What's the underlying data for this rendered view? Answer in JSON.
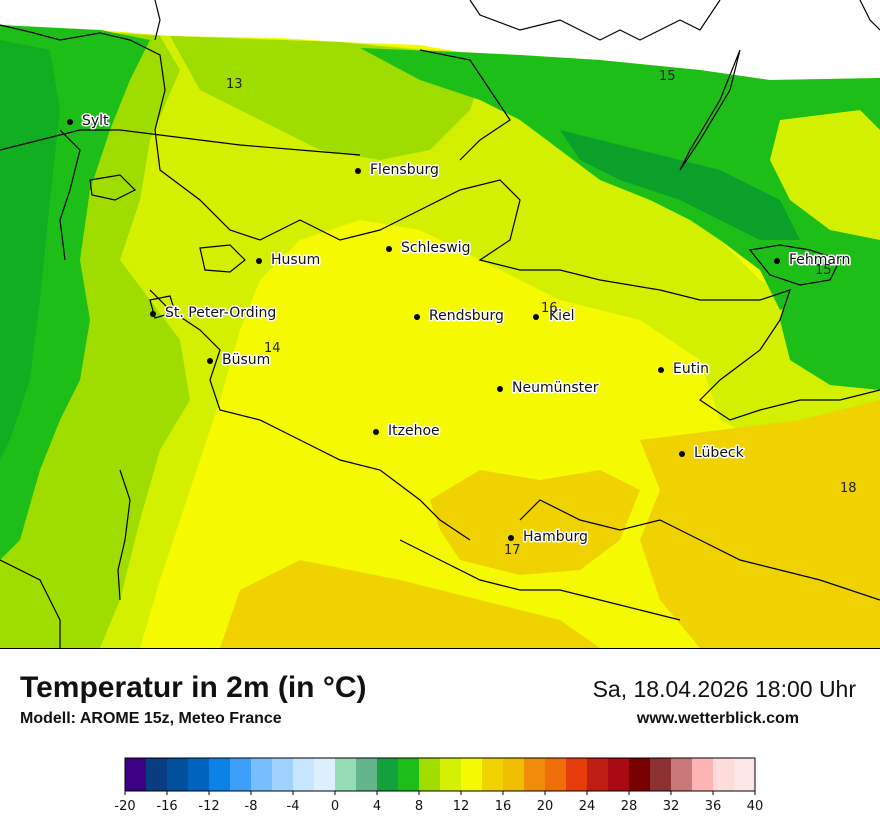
{
  "header": {
    "title": "Temperatur in 2m (in °C)",
    "model": "Modell: AROME 15z, Meteo France",
    "datetime": "Sa, 18.04.2026 18:00 Uhr",
    "website": "www.wetterblick.com"
  },
  "cities": [
    "Sylt",
    "Flensburg",
    "Schleswig",
    "Husum",
    "St. Peter-Ording",
    "Büsum",
    "Rendsburg",
    "Kiel",
    "Fehmarn",
    "Eutin",
    "Neumünster",
    "Itzehoe",
    "Lübeck",
    "Hamburg"
  ],
  "temperature_labels": [
    "13",
    "15",
    "15",
    "14",
    "16",
    "18",
    "17"
  ],
  "colors": {
    "temp_12_14": "#9fdd00",
    "temp_14_16": "#d2f000",
    "temp_16_18": "#f5fa00",
    "temp_18_20": "#f0d200",
    "temp_8_12_green": "#1fbe18",
    "temp_dark_green": "#0aa02a"
  },
  "legend": {
    "ticks": [
      "-20",
      "-16",
      "-12",
      "-8",
      "-4",
      "0",
      "4",
      "8",
      "12",
      "16",
      "20",
      "24",
      "28",
      "32",
      "36",
      "40"
    ],
    "colors": [
      "#3c0082",
      "#0a3c82",
      "#00509b",
      "#0064be",
      "#0a82e6",
      "#3ca0fa",
      "#78beff",
      "#a0d2ff",
      "#c8e6ff",
      "#dcf0ff",
      "#96dcb4",
      "#64b48c",
      "#14a03c",
      "#1ebe18",
      "#a0dc00",
      "#d2f000",
      "#f5fa00",
      "#f0d200",
      "#f0be00",
      "#f08c0a",
      "#f06e0a",
      "#e63c0a",
      "#be1e14",
      "#aa0a14",
      "#780000",
      "#8c3232",
      "#c87878",
      "#ffb4b4",
      "#ffdcdc",
      "#ffe6e6"
    ]
  }
}
